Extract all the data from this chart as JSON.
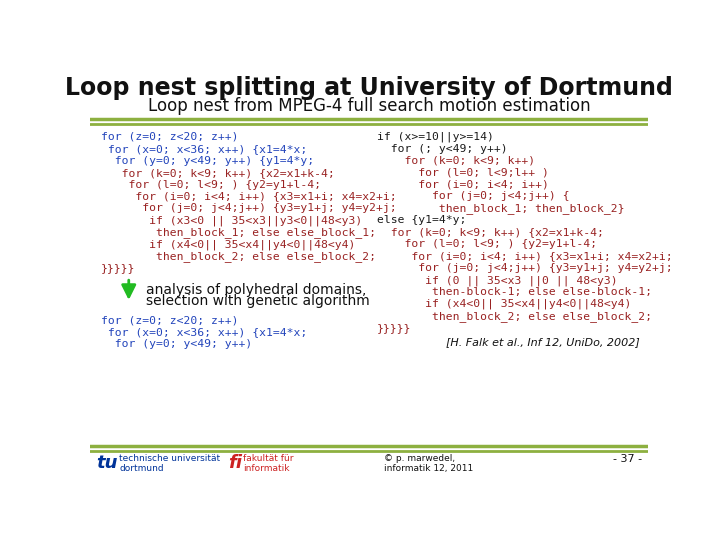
{
  "title": "Loop nest splitting at University of Dortmund",
  "subtitle": "Loop nest from MPEG-4 full search motion estimation",
  "bg_color": "#ffffff",
  "border_color_top": "#8db040",
  "border_color_bottom": "#8db040",
  "left_code": [
    [
      "#2244bb",
      "for (z=0; z<20; z++)"
    ],
    [
      "#2244bb",
      " for (x=0; x<36; x++) {x1=4*x;"
    ],
    [
      "#2244bb",
      "  for (y=0; y<49; y++) {y1=4*y;"
    ],
    [
      "#992222",
      "   for (k=0; k<9; k++) {x2=x1+k-4;"
    ],
    [
      "#992222",
      "    for (l=0; l<9; ) {y2=y1+l-4;"
    ],
    [
      "#992222",
      "     for (i=0; i<4; i++) {x3=x1+i; x4=x2+i;"
    ],
    [
      "#992222",
      "      for (j=0; j<4;j++) {y3=y1+j; y4=y2+j;"
    ],
    [
      "#992222",
      "       if (x3<0 || 35<x3||y3<0||48<y3)"
    ],
    [
      "#992222",
      "        then_block_1; else else_block_1;"
    ],
    [
      "#992222",
      "       if (x4<0|| 35<x4||y4<0||48<y4)"
    ],
    [
      "#992222",
      "        then_block_2; else else_block_2;"
    ],
    [
      "#992222",
      "}}}}}"
    ]
  ],
  "right_code": [
    [
      "#1a1a1a",
      "if (x>=10||y>=14)"
    ],
    [
      "#1a1a1a",
      "  for (; y<49; y++)"
    ],
    [
      "#992222",
      "    for (k=0; k<9; k++)"
    ],
    [
      "#992222",
      "      for (l=0; l<9;l++ )"
    ],
    [
      "#992222",
      "      for (i=0; i<4; i++)"
    ],
    [
      "#992222",
      "        for (j=0; j<4;j++) {"
    ],
    [
      "#992222",
      "         then_block_1; then_block_2}"
    ],
    [
      "#1a1a1a",
      "else {y1=4*y;"
    ],
    [
      "#992222",
      "  for (k=0; k<9; k++) {x2=x1+k-4;"
    ],
    [
      "#992222",
      "    for (l=0; l<9; ) {y2=y1+l-4;"
    ],
    [
      "#992222",
      "     for (i=0; i<4; i++) {x3=x1+i; x4=x2+i;"
    ],
    [
      "#992222",
      "      for (j=0; j<4;j++) {y3=y1+j; y4=y2+j;"
    ],
    [
      "#992222",
      "       if (0 || 35<x3 ||0 || 48<y3)"
    ],
    [
      "#992222",
      "        then-block-1; else else-block-1;"
    ],
    [
      "#992222",
      "       if (x4<0|| 35<x4||y4<0||48<y4)"
    ],
    [
      "#992222",
      "        then_block_2; else else_block_2;"
    ],
    [
      "#992222",
      "}}}}}"
    ]
  ],
  "arrow_color": "#22bb22",
  "arrow_text_line1": "analysis of polyhedral domains,",
  "arrow_text_line2": "selection with genetic algorithm",
  "bottom_code_color": "#2244bb",
  "bottom_code": [
    "for (z=0; z<20; z++)",
    " for (x=0; x<36; x++) {x1=4*x;",
    "  for (y=0; y<49; y++)"
  ],
  "ref_text": "[H. Falk et al., Inf 12, UniDo, 2002]",
  "footer_left1": "technische universität",
  "footer_left2": "dortmund",
  "footer_mid1": "fakultät für",
  "footer_mid2": "informatik",
  "footer_right1": "© p. marwedel,",
  "footer_right2": "informatik 12, 2011",
  "footer_page": "- 37 -",
  "logo_tu_color": "#003399",
  "logo_fi_color": "#cc2222"
}
